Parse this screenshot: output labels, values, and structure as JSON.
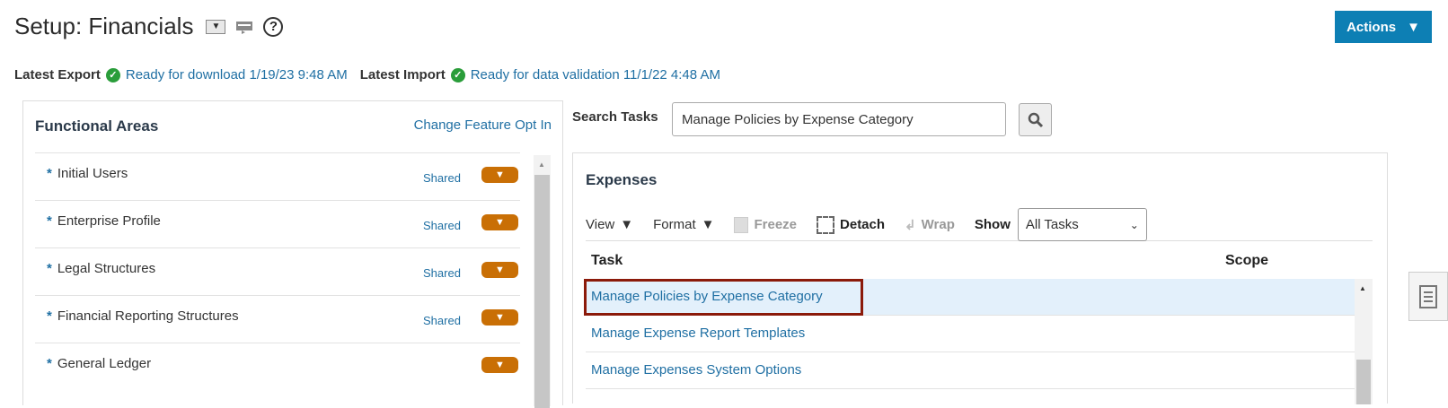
{
  "header": {
    "title": "Setup: Financials",
    "actions_label": "Actions"
  },
  "status": {
    "export_label": "Latest Export",
    "export_value": "Ready for download 1/19/23 9:48 AM",
    "import_label": "Latest Import",
    "import_value": "Ready for data validation 11/1/22 4:48 AM"
  },
  "functional_areas": {
    "title": "Functional Areas",
    "change_link": "Change Feature Opt In",
    "items": [
      {
        "label": "Initial Users",
        "required": "*",
        "badge": "Shared"
      },
      {
        "label": "Enterprise Profile",
        "required": "*",
        "badge": "Shared"
      },
      {
        "label": "Legal Structures",
        "required": "*",
        "badge": "Shared"
      },
      {
        "label": "Financial Reporting Structures",
        "required": "*",
        "badge": "Shared"
      },
      {
        "label": "General Ledger",
        "required": "*",
        "badge": ""
      }
    ]
  },
  "search": {
    "label": "Search Tasks",
    "value": "Manage Policies by Expense Category"
  },
  "tasks": {
    "title": "Expenses",
    "toolbar": {
      "view": "View",
      "format": "Format",
      "freeze": "Freeze",
      "detach": "Detach",
      "wrap": "Wrap",
      "show": "Show",
      "show_value": "All Tasks"
    },
    "columns": {
      "task": "Task",
      "scope": "Scope"
    },
    "rows": [
      {
        "task": "Manage Policies by Expense Category"
      },
      {
        "task": "Manage Expense Report Templates"
      },
      {
        "task": "Manage Expenses System Options"
      }
    ]
  },
  "colors": {
    "accent": "#0d7fb4",
    "link": "#1f6fa3",
    "orange": "#c96f05",
    "highlight": "#8b1a0a",
    "selected": "#e3f0fb"
  }
}
